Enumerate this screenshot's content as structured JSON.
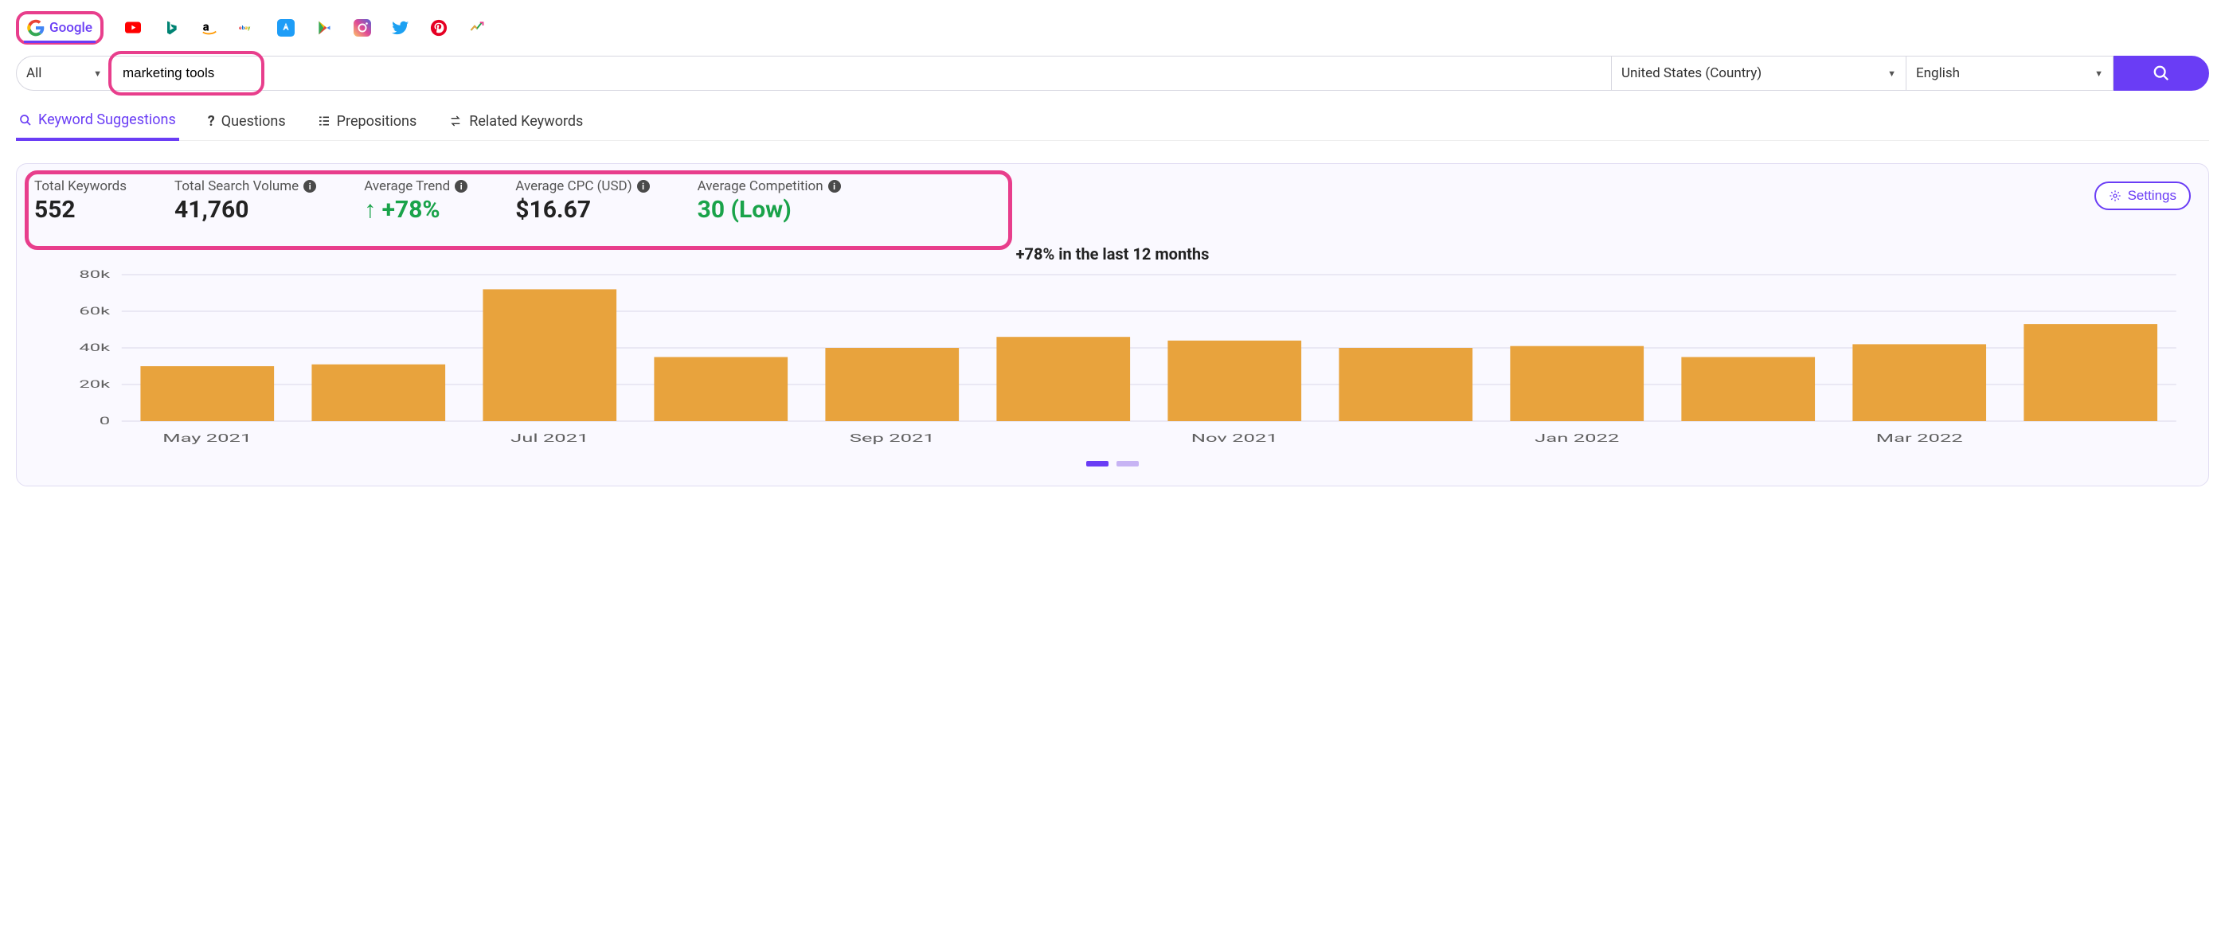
{
  "colors": {
    "accent": "#6a3df5",
    "highlight_border": "#e83e8c",
    "green": "#1aa34a",
    "bar": "#e8a33d",
    "panel_bg": "#faf9ff",
    "panel_border": "#e0dcf2",
    "axis_text": "#606060",
    "grid": "#d9d6e8",
    "swatch2": "#c7b4f4"
  },
  "source_tabs": {
    "active": "google",
    "google_label": "Google"
  },
  "search": {
    "filter": "All",
    "keyword": "marketing tools",
    "country": "United States (Country)",
    "language": "English"
  },
  "sub_tabs": {
    "suggestions": "Keyword Suggestions",
    "questions": "Questions",
    "prepositions": "Prepositions",
    "related": "Related Keywords",
    "active": "suggestions"
  },
  "metrics": {
    "total_keywords": {
      "label": "Total Keywords",
      "value": "552"
    },
    "total_volume": {
      "label": "Total Search Volume",
      "value": "41,760"
    },
    "avg_trend": {
      "label": "Average Trend",
      "value": "↑ +78%"
    },
    "avg_cpc": {
      "label": "Average CPC (USD)",
      "value": "$16.67"
    },
    "avg_comp": {
      "label": "Average Competition",
      "value": "30 (Low)"
    }
  },
  "settings_label": "Settings",
  "chart": {
    "type": "bar",
    "title": "+78% in the last 12 months",
    "ylim": [
      0,
      80
    ],
    "ytick_step": 20,
    "y_suffix": "k",
    "bar_color": "#e8a33d",
    "grid_color": "#d9d6e8",
    "axis_color": "#606060",
    "tick_fontsize": 13,
    "categories": [
      "May 2021",
      "",
      "Jul 2021",
      "",
      "Sep 2021",
      "",
      "Nov 2021",
      "",
      "Jan 2022",
      "",
      "Mar 2022",
      ""
    ],
    "x_labels": [
      "May 2021",
      "Jul 2021",
      "Sep 2021",
      "Nov 2021",
      "Jan 2022",
      "Mar 2022"
    ],
    "values": [
      30,
      31,
      72,
      35,
      40,
      46,
      44,
      40,
      41,
      35,
      42,
      53
    ],
    "bar_width_ratio": 0.78
  }
}
